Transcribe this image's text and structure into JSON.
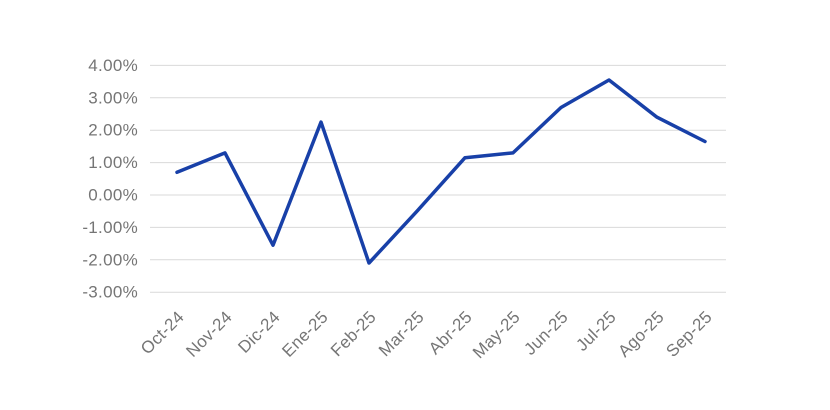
{
  "chart_data": {
    "type": "line",
    "title": "",
    "xlabel": "",
    "ylabel": "",
    "categories": [
      "Oct-24",
      "Nov-24",
      "Dic-24",
      "Ene-25",
      "Feb-25",
      "Mar-25",
      "Abr-25",
      "May-25",
      "Jun-25",
      "Jul-25",
      "Ago-25",
      "Sep-25"
    ],
    "values": [
      0.7,
      1.3,
      -1.55,
      2.25,
      -2.1,
      -0.5,
      1.15,
      1.3,
      2.7,
      3.55,
      2.4,
      1.65
    ],
    "unit": "%",
    "y_ticks": [
      4,
      3,
      2,
      1,
      0,
      -1,
      -2,
      -3
    ],
    "y_tick_labels": [
      "4.00%",
      "3.00%",
      "2.00%",
      "1.00%",
      "0.00%",
      "-1.00%",
      "-2.00%",
      "-3.00%"
    ],
    "ylim": [
      -3,
      4
    ],
    "grid": true,
    "legend": false,
    "colors": {
      "line": "#1840A8",
      "gridline": "#D9D9D9",
      "tick_label": "#757575",
      "background": "#FFFFFF"
    }
  }
}
